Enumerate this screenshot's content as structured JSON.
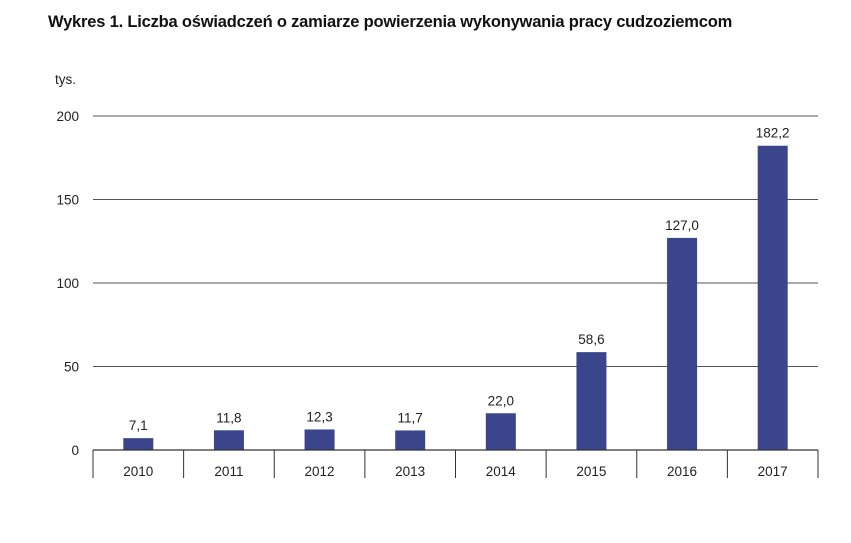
{
  "title": "Wykres 1. Liczba oświadczeń  o zamiarze powierzenia wykonywania pracy cudzoziemcom",
  "chart_data": {
    "type": "bar",
    "title": "Wykres 1. Liczba oświadczeń  o zamiarze powierzenia wykonywania pracy cudzoziemcom",
    "ylabel": "tys.",
    "xlabel": "",
    "categories": [
      "2010",
      "2011",
      "2012",
      "2013",
      "2014",
      "2015",
      "2016",
      "2017"
    ],
    "values": [
      7.1,
      11.8,
      12.3,
      11.7,
      22.0,
      58.6,
      127.0,
      182.2
    ],
    "value_labels": [
      "7,1",
      "11,8",
      "12,3",
      "11,7",
      "22,0",
      "58,6",
      "127,0",
      "182,2"
    ],
    "ylim": [
      0,
      200
    ],
    "yticks": [
      0,
      50,
      100,
      150,
      200
    ],
    "grid": true,
    "legend": "none",
    "colors": {
      "bar": "#3a458b",
      "grid": "#555555",
      "text": "#222222"
    }
  }
}
